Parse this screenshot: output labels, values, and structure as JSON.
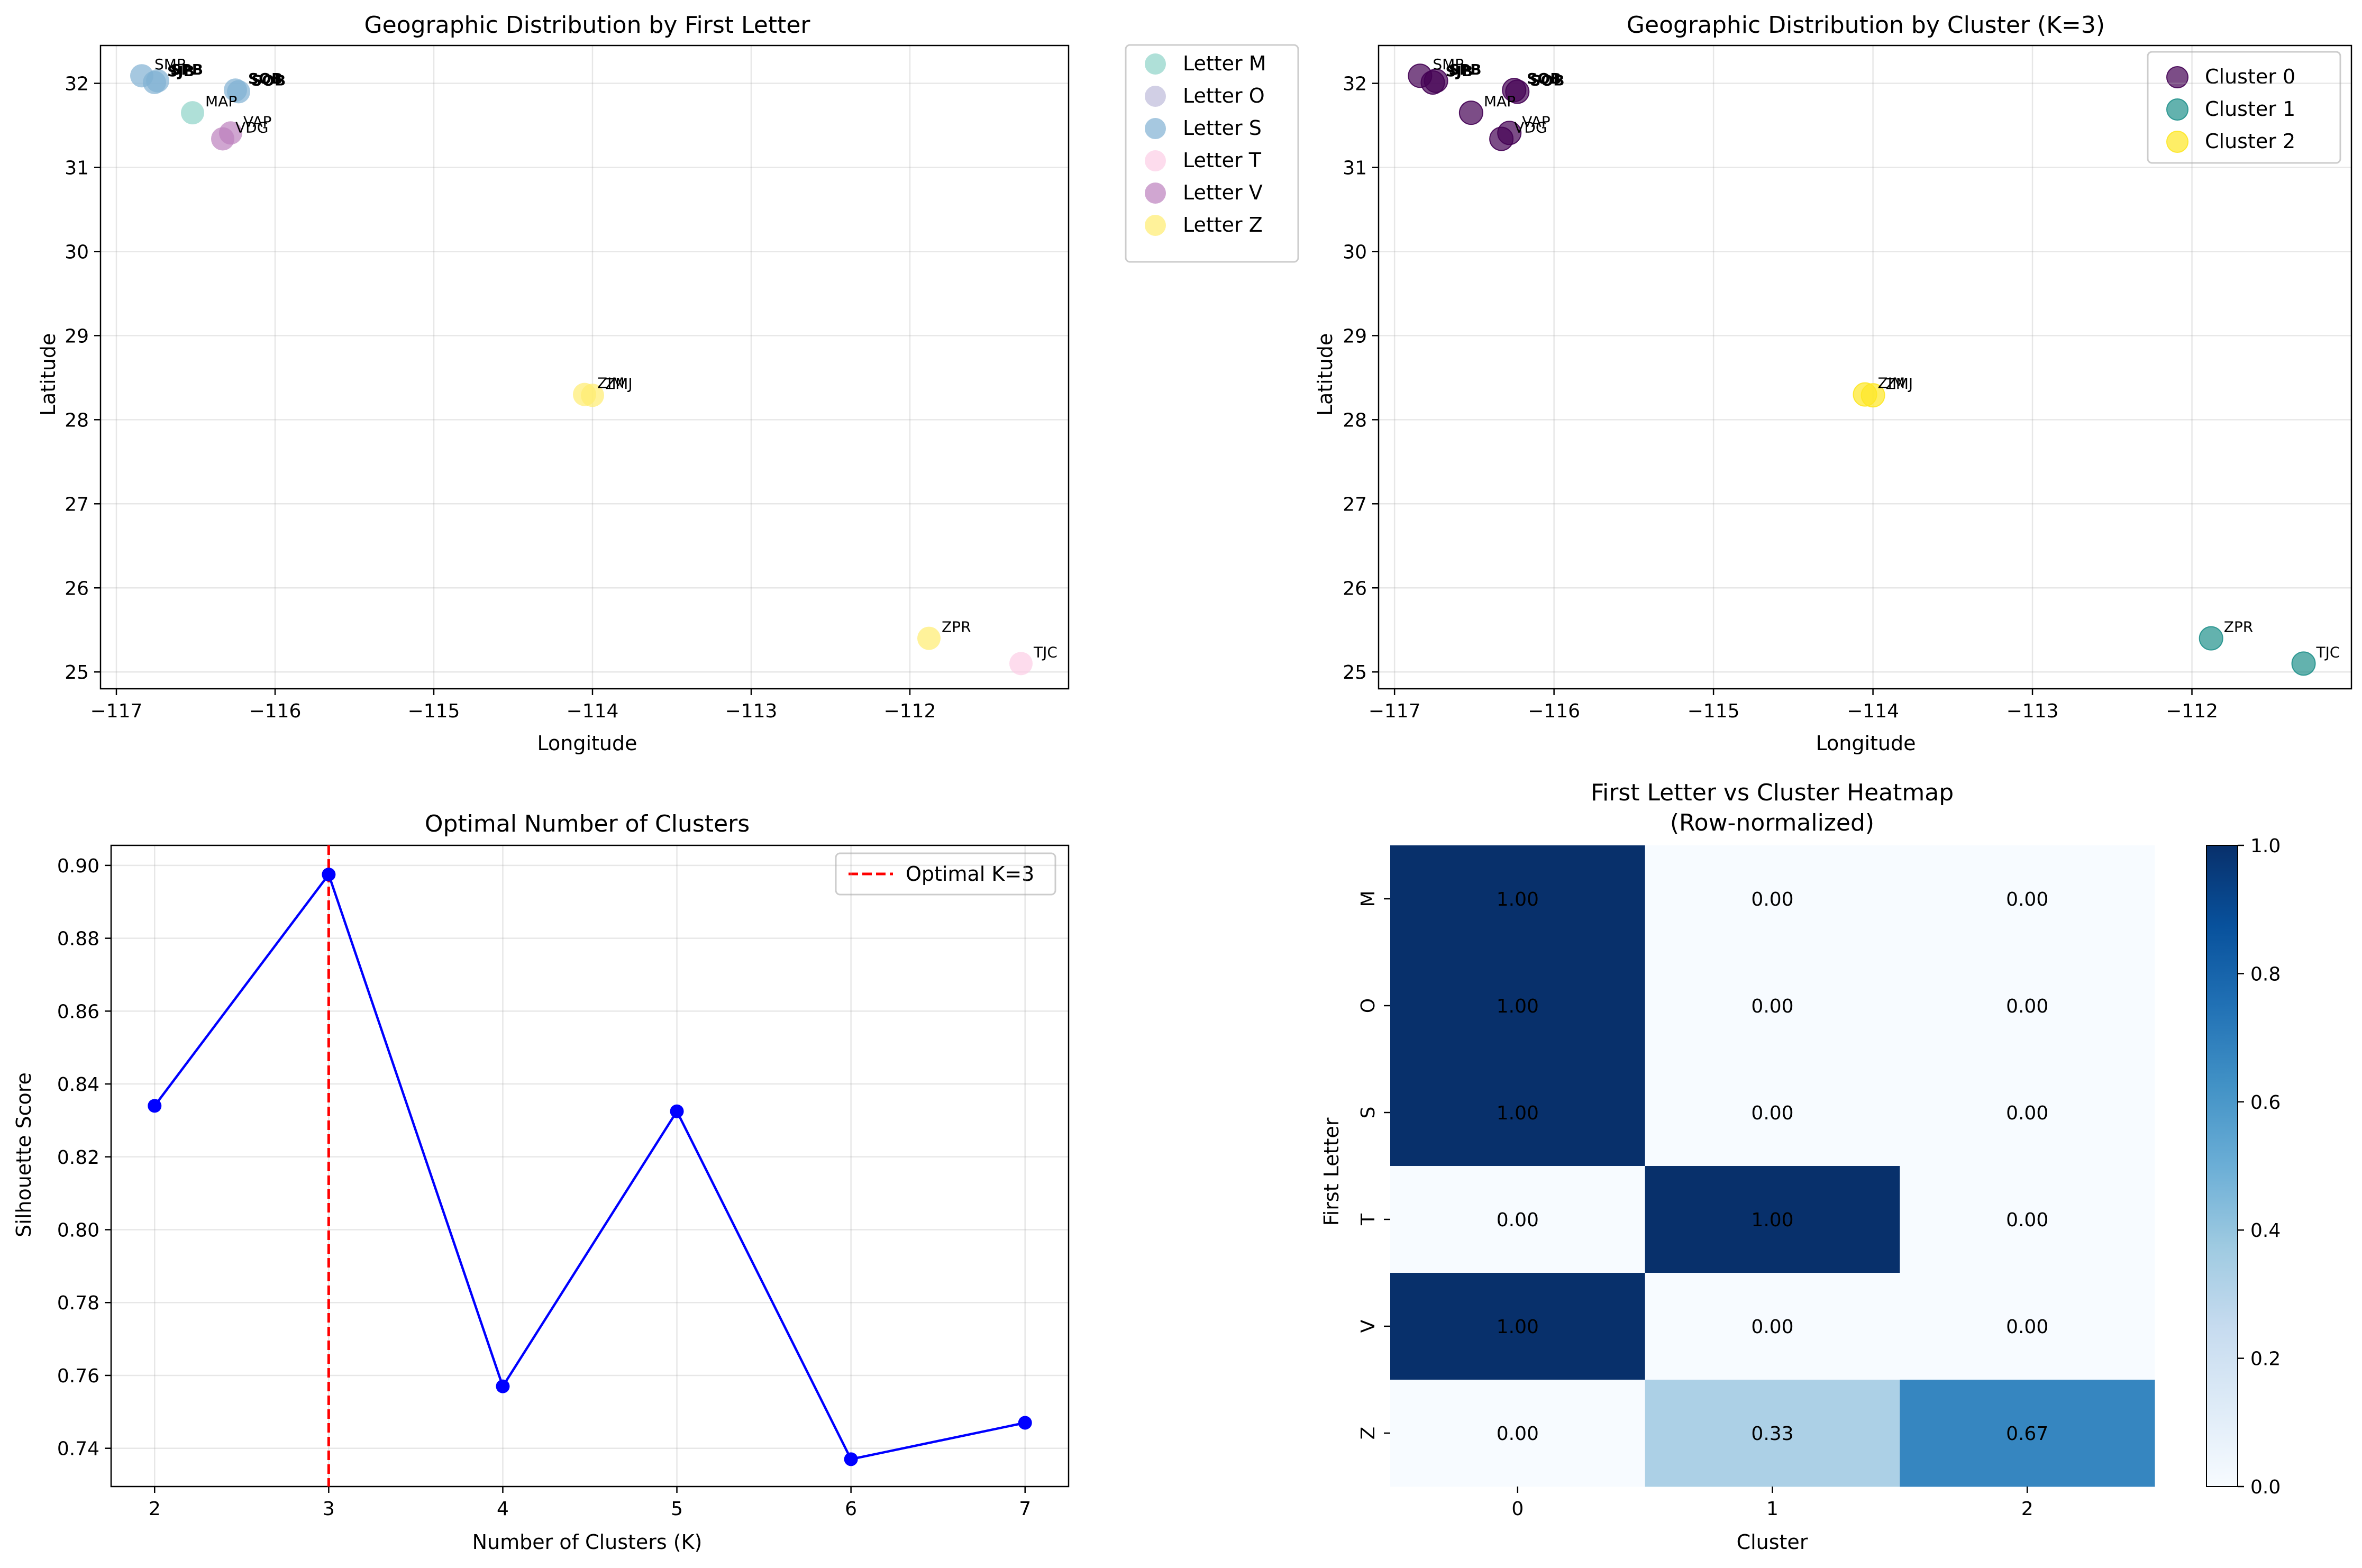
{
  "chart_data": [
    {
      "type": "scatter",
      "title": "Geographic Distribution by First Letter",
      "xlabel": "Longitude",
      "ylabel": "Latitude",
      "xlim": [
        -117.1,
        -111.0
      ],
      "ylim": [
        24.8,
        32.45
      ],
      "xticks": [
        -117,
        -116,
        -115,
        -114,
        -113,
        -112
      ],
      "yticks": [
        25,
        26,
        27,
        28,
        29,
        30,
        31,
        32
      ],
      "grid": true,
      "legend_position": "outside-right",
      "series": [
        {
          "name": "Letter M",
          "color": "#8dd3c7",
          "points": [
            {
              "x": -116.52,
              "y": 31.65,
              "label": "MAP"
            }
          ]
        },
        {
          "name": "Letter O",
          "color": "#bebada",
          "points": []
        },
        {
          "name": "Letter S",
          "color": "#80b1d3",
          "points": [
            {
              "x": -116.84,
              "y": 32.09,
              "label": "SMP"
            },
            {
              "x": -116.76,
              "y": 32.01,
              "label": "SJB"
            },
            {
              "x": -116.74,
              "y": 32.03,
              "label": "SPB"
            },
            {
              "x": -116.23,
              "y": 31.9,
              "label": "SOB"
            },
            {
              "x": -116.25,
              "y": 31.92,
              "label": "SQB"
            }
          ]
        },
        {
          "name": "Letter T",
          "color": "#fccde5",
          "points": [
            {
              "x": -111.3,
              "y": 25.1,
              "label": "TJC"
            }
          ]
        },
        {
          "name": "Letter V",
          "color": "#bc80bd",
          "points": [
            {
              "x": -116.28,
              "y": 31.41,
              "label": "VAP"
            },
            {
              "x": -116.33,
              "y": 31.34,
              "label": "VDG"
            }
          ]
        },
        {
          "name": "Letter Z",
          "color": "#ffed6f",
          "points": [
            {
              "x": -114.05,
              "y": 28.3,
              "label": "ZIM"
            },
            {
              "x": -114.0,
              "y": 28.29,
              "label": "ZMJ"
            },
            {
              "x": -111.88,
              "y": 25.4,
              "label": "ZPR"
            }
          ]
        }
      ]
    },
    {
      "type": "scatter",
      "title": "Geographic Distribution by Cluster (K=3)",
      "xlabel": "Longitude",
      "ylabel": "Latitude",
      "xlim": [
        -117.1,
        -111.0
      ],
      "ylim": [
        24.8,
        32.45
      ],
      "xticks": [
        -117,
        -116,
        -115,
        -114,
        -113,
        -112
      ],
      "yticks": [
        25,
        26,
        27,
        28,
        29,
        30,
        31,
        32
      ],
      "grid": true,
      "legend_position": "top-right",
      "series": [
        {
          "name": "Cluster 0",
          "color": "#440154",
          "points": [
            {
              "x": -116.84,
              "y": 32.09,
              "label": "SMP"
            },
            {
              "x": -116.76,
              "y": 32.01,
              "label": "SJB"
            },
            {
              "x": -116.74,
              "y": 32.03,
              "label": "SPB"
            },
            {
              "x": -116.23,
              "y": 31.9,
              "label": "SOB"
            },
            {
              "x": -116.25,
              "y": 31.92,
              "label": "SQB"
            },
            {
              "x": -116.52,
              "y": 31.65,
              "label": "MAP"
            },
            {
              "x": -116.28,
              "y": 31.41,
              "label": "VAP"
            },
            {
              "x": -116.33,
              "y": 31.34,
              "label": "VDG"
            }
          ]
        },
        {
          "name": "Cluster 1",
          "color": "#21918c",
          "points": [
            {
              "x": -111.88,
              "y": 25.4,
              "label": "ZPR"
            },
            {
              "x": -111.3,
              "y": 25.1,
              "label": "TJC"
            }
          ]
        },
        {
          "name": "Cluster 2",
          "color": "#fde725",
          "points": [
            {
              "x": -114.05,
              "y": 28.3,
              "label": "ZIM"
            },
            {
              "x": -114.0,
              "y": 28.29,
              "label": "ZMJ"
            }
          ]
        }
      ]
    },
    {
      "type": "line",
      "title": "Optimal Number of Clusters",
      "xlabel": "Number of Clusters (K)",
      "ylabel": "Silhouette Score",
      "xlim": [
        1.75,
        7.25
      ],
      "ylim": [
        0.7295,
        0.9055
      ],
      "xticks": [
        2,
        3,
        4,
        5,
        6,
        7
      ],
      "yticks": [
        0.74,
        0.76,
        0.78,
        0.8,
        0.82,
        0.84,
        0.86,
        0.88,
        0.9
      ],
      "ytick_labels": [
        "0.74",
        "0.76",
        "0.78",
        "0.80",
        "0.82",
        "0.84",
        "0.86",
        "0.88",
        "0.90"
      ],
      "grid": true,
      "legend_position": "top-right",
      "series": [
        {
          "name": "",
          "color": "#0000ff",
          "x": [
            2,
            3,
            4,
            5,
            6,
            7
          ],
          "values": [
            0.834,
            0.8975,
            0.757,
            0.8325,
            0.737,
            0.747
          ]
        }
      ],
      "reference_line": {
        "x": 3,
        "name": "Optimal K=3",
        "color": "#ff0000"
      }
    },
    {
      "type": "heatmap",
      "title": "First Letter vs Cluster Heatmap",
      "subtitle": "(Row-normalized)",
      "xlabel": "Cluster",
      "ylabel": "First Letter",
      "x_categories": [
        "0",
        "1",
        "2"
      ],
      "y_categories": [
        "M",
        "O",
        "S",
        "T",
        "V",
        "Z"
      ],
      "values": [
        [
          1.0,
          0.0,
          0.0
        ],
        [
          1.0,
          0.0,
          0.0
        ],
        [
          1.0,
          0.0,
          0.0
        ],
        [
          0.0,
          1.0,
          0.0
        ],
        [
          1.0,
          0.0,
          0.0
        ],
        [
          0.0,
          0.33,
          0.67
        ]
      ],
      "value_labels": [
        [
          "1.00",
          "0.00",
          "0.00"
        ],
        [
          "1.00",
          "0.00",
          "0.00"
        ],
        [
          "1.00",
          "0.00",
          "0.00"
        ],
        [
          "0.00",
          "1.00",
          "0.00"
        ],
        [
          "1.00",
          "0.00",
          "0.00"
        ],
        [
          "0.00",
          "0.33",
          "0.67"
        ]
      ],
      "colormap": "Blues",
      "colorbar_range": [
        0,
        1
      ],
      "colorbar_ticks": [
        "0.0",
        "0.2",
        "0.4",
        "0.6",
        "0.8",
        "1.0"
      ]
    }
  ]
}
